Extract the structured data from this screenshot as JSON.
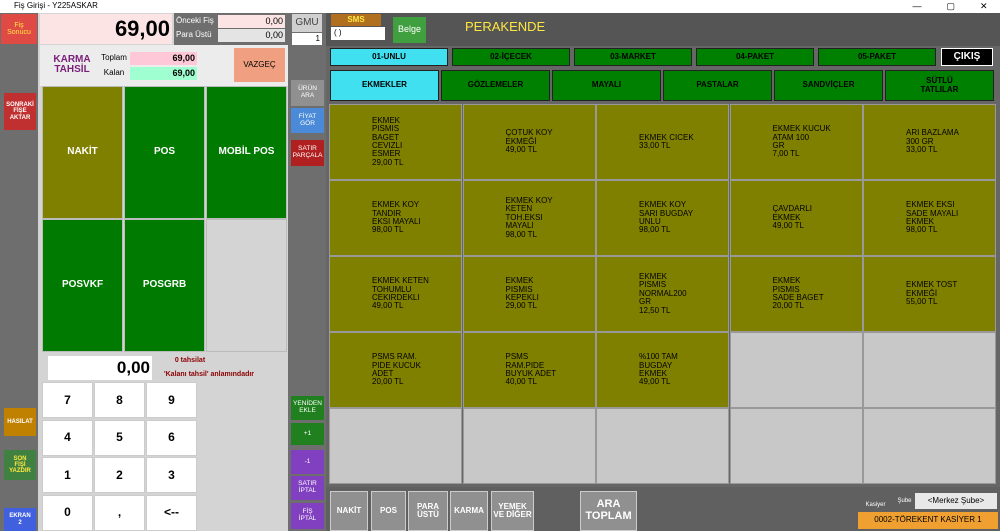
{
  "title_bar": "Fiş Girişi - Y225ASKAR",
  "receipt": {
    "result": [
      "Fiş",
      "Sonucu"
    ],
    "total": "69,00",
    "previous_label": "Önceki Fiş",
    "previous": "0,00",
    "change_label": "Para Üstü",
    "change": "0,00"
  },
  "mixed": {
    "title": [
      "KARMA",
      "TAHSİL"
    ],
    "total_label": "Toplam",
    "total": "69,00",
    "remaining_label": "Kalan",
    "remaining": "69,00",
    "cancel": "VAZGEÇ"
  },
  "payments": [
    "NAKİT",
    "POS",
    "MOBİL POS",
    "POSVKF",
    "POSGRB"
  ],
  "amount": {
    "value": "0,00",
    "hint_1": "0 tahsilat",
    "hint_2": "'Kalanı tahsil' anlamındadır"
  },
  "keypad": [
    "7",
    "8",
    "9",
    "4",
    "5",
    "6",
    "1",
    "2",
    "3",
    "0",
    ",",
    "<--"
  ],
  "left_buttons": [
    [
      "SONRAKİ",
      "FİŞE",
      "AKTAR"
    ],
    [
      "HASILAT"
    ],
    [
      "SON",
      "FİŞİ",
      "YAZDIR"
    ],
    [
      "EKRAN",
      "2"
    ]
  ],
  "gmu": "GMU",
  "quantity": "1",
  "mid_buttons": [
    [
      "ÜRÜN",
      "ARA"
    ],
    [
      "FİYAT",
      "GÖR"
    ],
    [
      "SATIR",
      "PARÇALA"
    ],
    [
      "YENİDEN",
      "EKLE"
    ],
    [
      "+1"
    ],
    [
      "-1"
    ],
    [
      "SATIR",
      "İPTAL"
    ],
    [
      "FİŞ",
      "İPTAL"
    ]
  ],
  "sms": "SMS",
  "sms_input": "( )",
  "belge": "Belge",
  "mode": "PERAKENDE",
  "categories": [
    "01-UNLU",
    "02-İÇECEK",
    "03-MARKET",
    "04-PAKET",
    "05-PAKET"
  ],
  "exit": "ÇIKIŞ",
  "subcategories": [
    [
      "EKMEKLER"
    ],
    [
      "GÖZLEMELER"
    ],
    [
      "MAYALI"
    ],
    [
      "PASTALAR"
    ],
    [
      "SANDVİÇLER"
    ],
    [
      "SÜTLÜ",
      "TATLILAR"
    ]
  ],
  "products": [
    [
      "EKMEK",
      "PISMIS",
      "BAGET",
      "CEVIZLI",
      "ESMER",
      "29,00 TL"
    ],
    [
      "ÇOTUK KOY",
      "EKMEĞİ",
      "49,00 TL"
    ],
    [
      "EKMEK CICEK",
      "33,00 TL"
    ],
    [
      "EKMEK KUCUK",
      "ATAM 100",
      "GR",
      "7,00 TL"
    ],
    [
      "ARI BAZLAMA",
      "300 GR",
      "33,00 TL"
    ],
    [
      "EKMEK KOY",
      "TANDIR",
      "EKSI MAYALI",
      "98,00 TL"
    ],
    [
      "EKMEK KOY",
      "KETEN",
      "TOH.EKSI",
      "MAYALI",
      "98,00 TL"
    ],
    [
      "EKMEK KOY",
      "SARI BUGDAY",
      "UNLU",
      "98,00 TL"
    ],
    [
      "ÇAVDARLI",
      "EKMEK",
      "49,00 TL"
    ],
    [
      "EKMEK EKSI",
      "SADE MAYALI",
      "EKMEK",
      "98,00 TL"
    ],
    [
      "EKMEK KETEN",
      "TOHUMLU",
      "CEKIRDEKLI",
      "49,00 TL"
    ],
    [
      "EKMEK",
      "PISMIS",
      "KEPEKLI",
      "29,00 TL"
    ],
    [
      "EKMEK",
      "PISMIS",
      "NORMAL200",
      "GR",
      "12,50 TL"
    ],
    [
      "EKMEK",
      "PISMIS",
      "SADE BAGET",
      "20,00 TL"
    ],
    [
      "EKMEK TOST",
      "EKMEĞİ",
      "55,00 TL"
    ],
    [
      "PSMS RAM.",
      "PIDE KUCUK",
      "ADET",
      "20,00 TL"
    ],
    [
      "PSMS",
      "RAM.PIDE",
      "BUYUK ADET",
      "40,00 TL"
    ],
    [
      "%100 TAM",
      "BUGDAY",
      "EKMEK",
      "49,00 TL"
    ]
  ],
  "bottom_buttons": [
    [
      "NAKİT"
    ],
    [
      "POS"
    ],
    [
      "PARA",
      "ÜSTÜ"
    ],
    [
      "KARMA"
    ],
    [
      "YEMEK",
      "VE DİĞER"
    ],
    [
      "ARA",
      "TOPLAM"
    ]
  ],
  "cashier_label": "Kasiyer",
  "branch_label": "Şube",
  "branch": "<Merkez Şube>",
  "cashier": "0002-TÖREKENT KASİYER 1"
}
